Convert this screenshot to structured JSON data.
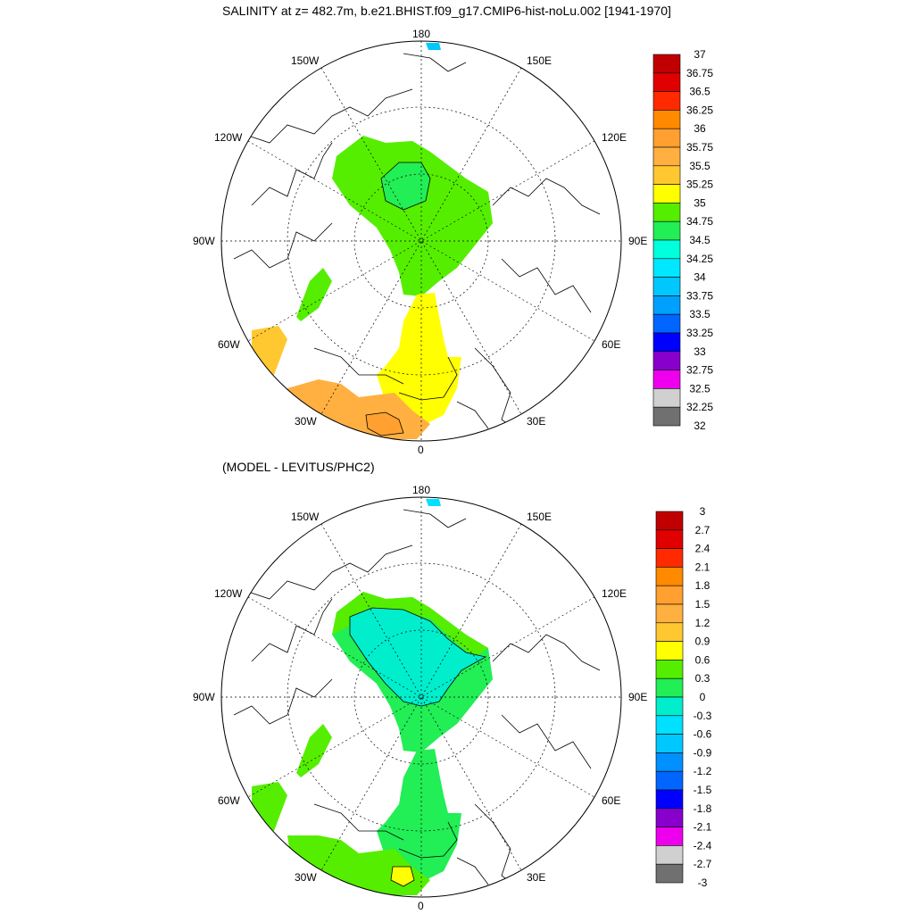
{
  "titles": {
    "top": "SALINITY at z= 482.7m, b.e21.BHIST.f09_g17.CMIP6-hist-noLu.002 [1941-1970]",
    "bottom": "(MODEL - LEVITUS/PHC2)"
  },
  "map_labels": {
    "lon_180": "180",
    "lon_150w": "150W",
    "lon_150e": "150E",
    "lon_120w": "120W",
    "lon_120e": "120E",
    "lon_90w": "90W",
    "lon_90e": "90E",
    "lon_60w": "60W",
    "lon_60e": "60E",
    "lon_30w": "30W",
    "lon_30e": "30E",
    "lon_0": "0"
  },
  "colorbars": {
    "top": {
      "labels": [
        "37",
        "36.75",
        "36.5",
        "36.25",
        "36",
        "35.75",
        "35.5",
        "35.25",
        "35",
        "34.75",
        "34.5",
        "34.25",
        "34",
        "33.75",
        "33.5",
        "33.25",
        "33",
        "32.75",
        "32.5",
        "32.25",
        "32"
      ],
      "colors": [
        "#c00000",
        "#e00000",
        "#ff2a00",
        "#ff8a00",
        "#ffa030",
        "#ffb040",
        "#ffc830",
        "#ffff00",
        "#55ee00",
        "#22ee55",
        "#00ffdd",
        "#00e8ff",
        "#00c8ff",
        "#00a0ff",
        "#0066ff",
        "#0000ff",
        "#8800cc",
        "#ee00ee",
        "#d0d0d0",
        "#707070"
      ]
    },
    "bottom": {
      "labels": [
        "3",
        "2.7",
        "2.4",
        "2.1",
        "1.8",
        "1.5",
        "1.2",
        "0.9",
        "0.6",
        "0.3",
        "0",
        "-0.3",
        "-0.6",
        "-0.9",
        "-1.2",
        "-1.5",
        "-1.8",
        "-2.1",
        "-2.4",
        "-2.7",
        "-3"
      ],
      "colors": [
        "#c00000",
        "#e00000",
        "#ff2a00",
        "#ff8a00",
        "#ffa030",
        "#ffb040",
        "#ffc830",
        "#ffff00",
        "#55ee00",
        "#22ee55",
        "#00eecc",
        "#00e0ff",
        "#00c8ff",
        "#0090ff",
        "#0066ff",
        "#0000ff",
        "#8800cc",
        "#ee00ee",
        "#d0d0d0",
        "#707070"
      ]
    }
  },
  "colors": {
    "top_green": "#55ee00",
    "top_seagreen": "#22ee55",
    "top_yellow": "#ffff00",
    "top_orange": "#ffb040",
    "top_darkorange": "#ffa030",
    "bot_green": "#55ee00",
    "bot_seagreen": "#22ee55",
    "bot_cyan": "#00eecc",
    "bot_yellow": "#ffff00"
  }
}
